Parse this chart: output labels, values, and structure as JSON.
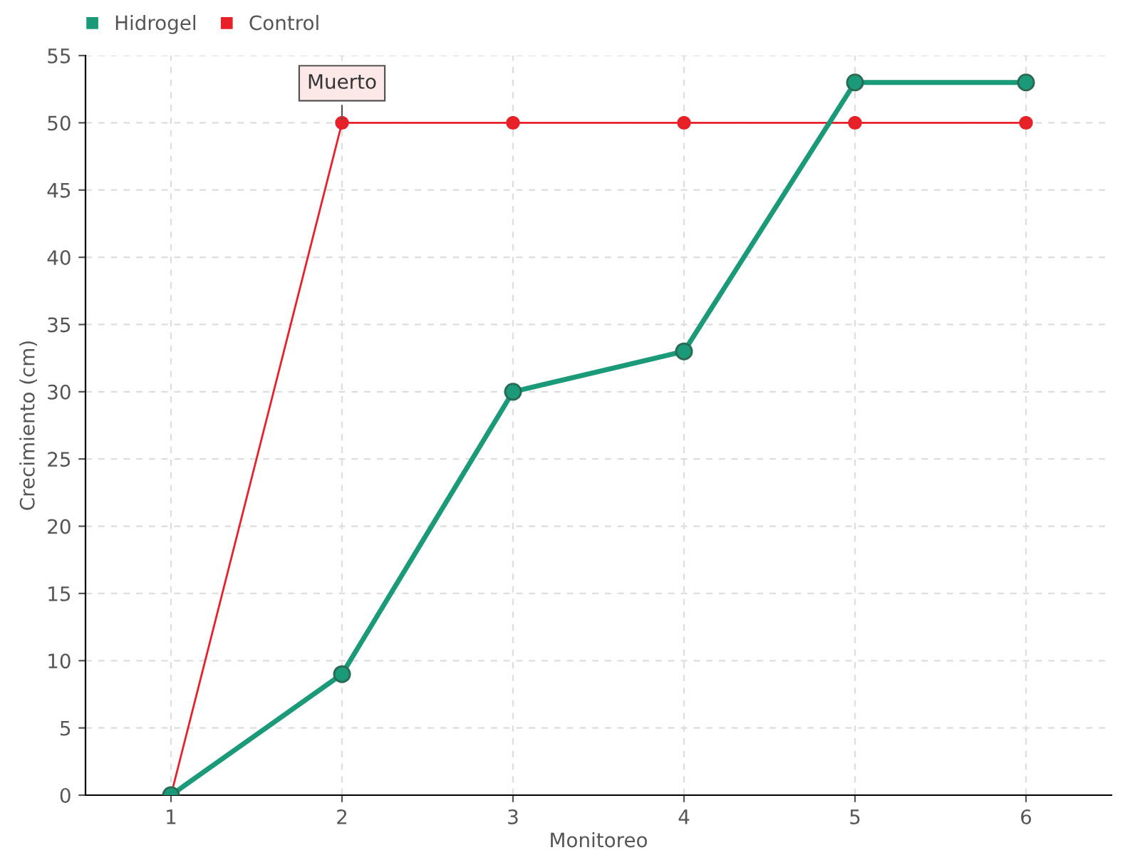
{
  "chart_data": {
    "type": "line",
    "xlabel": "Monitoreo",
    "ylabel": "Crecimiento (cm)",
    "categories": [
      "1",
      "2",
      "3",
      "4",
      "5",
      "6"
    ],
    "series": [
      {
        "name": "Hidrogel",
        "color": "#1a9a78",
        "values": [
          0,
          9,
          30,
          33,
          53,
          53
        ]
      },
      {
        "name": "Control",
        "color": "#e8202a",
        "values": [
          0,
          50,
          50,
          50,
          50,
          50
        ]
      }
    ],
    "ylim": [
      0,
      55
    ],
    "yticks": [
      0,
      5,
      10,
      15,
      20,
      25,
      30,
      35,
      40,
      45,
      50,
      55
    ],
    "grid": true,
    "legend": "top left",
    "marker": "circle",
    "line_style": "solid",
    "annotations": [
      {
        "text": "Muerto",
        "x": "2",
        "y": 50
      }
    ]
  }
}
